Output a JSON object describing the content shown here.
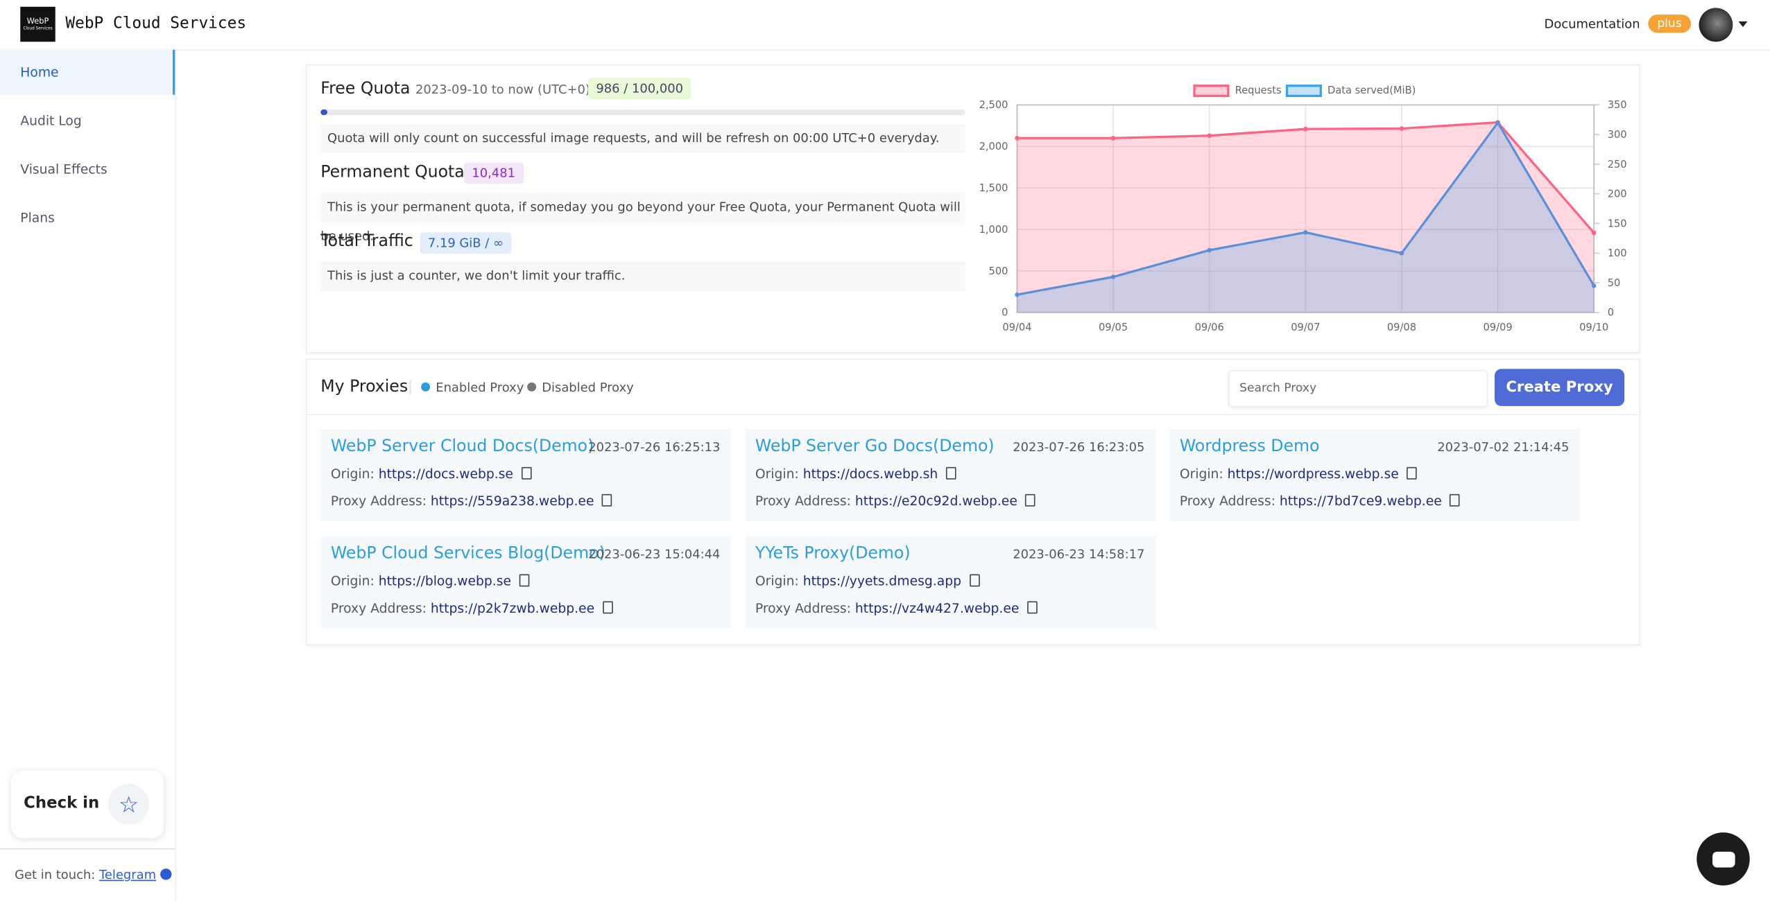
{
  "header": {
    "title": "WebP Cloud Services",
    "logo": "WebP",
    "logo_sub": "Cloud Services",
    "docs": "Documentation",
    "badge": "plus"
  },
  "sidebar": {
    "items": [
      "Home",
      "Audit Log",
      "Visual Effects",
      "Plans"
    ],
    "checkin": "Check in",
    "touch": "Get in touch:",
    "telegram": "Telegram"
  },
  "quota": {
    "free_title": "Free Quota",
    "free_range": "2023-09-10 to now (UTC+0)",
    "free_badge": "986 / 100,000",
    "free_note": "Quota will only count on successful image requests, and will be refresh on 00:00 UTC+0 everyday.",
    "perm_title": "Permanent Quota",
    "perm_badge": "10,481",
    "perm_note": "This is your permanent quota, if someday you go beyond your Free Quota, your Permanent Quota will be used.",
    "traffic_title": "Total Traffic",
    "traffic_badge": "7.19 GiB / ∞",
    "traffic_note": "This is just a counter, we don't limit your traffic."
  },
  "chart_data": {
    "type": "line",
    "categories": [
      "09/04",
      "09/05",
      "09/06",
      "09/07",
      "09/08",
      "09/09",
      "09/10"
    ],
    "series": [
      {
        "name": "Requests",
        "color": "#ff6384",
        "values": [
          2100,
          2100,
          2130,
          2210,
          2215,
          2290,
          960
        ]
      },
      {
        "name": "Data served(MiB)",
        "color": "#36a2eb",
        "axis": "y2",
        "values": [
          30,
          60,
          105,
          135,
          100,
          320,
          45
        ]
      }
    ],
    "ylim": [
      0,
      2500
    ],
    "yticks": [
      0,
      500,
      {
        "value": 1000,
        "label": "1,000"
      },
      {
        "value": 1500,
        "label": "1,500"
      },
      {
        "value": 2000,
        "label": "2,000"
      },
      {
        "value": 2500,
        "label": "2,500"
      }
    ],
    "y2lim": [
      0,
      350
    ],
    "y2ticks": [
      0,
      50,
      100,
      150,
      200,
      250,
      300,
      350
    ],
    "grid": true,
    "legend": "top"
  },
  "proxies": {
    "title": "My Proxies",
    "enabled": "Enabled Proxy",
    "disabled": "Disabled Proxy",
    "search": "Search Proxy",
    "create": "Create Proxy",
    "origin_label": "Origin:",
    "address_label": "Proxy Address:",
    "items": [
      {
        "name": "WebP Server Cloud Docs(Demo)",
        "date": "2023-07-26 16:25:13",
        "origin": "https://docs.webp.se",
        "address": "https://559a238.webp.ee"
      },
      {
        "name": "WebP Server Go Docs(Demo)",
        "date": "2023-07-26 16:23:05",
        "origin": "https://docs.webp.sh",
        "address": "https://e20c92d.webp.ee"
      },
      {
        "name": "Wordpress Demo",
        "date": "2023-07-02 21:14:45",
        "origin": "https://wordpress.webp.se",
        "address": "https://7bd7ce9.webp.ee"
      },
      {
        "name": "WebP Cloud Services Blog(Demo)",
        "date": "2023-06-23 15:04:44",
        "origin": "https://blog.webp.se",
        "address": "https://p2k7zwb.webp.ee"
      },
      {
        "name": "YYeTs Proxy(Demo)",
        "date": "2023-06-23 14:58:17",
        "origin": "https://yyets.dmesg.app",
        "address": "https://vz4w427.webp.ee"
      }
    ]
  }
}
